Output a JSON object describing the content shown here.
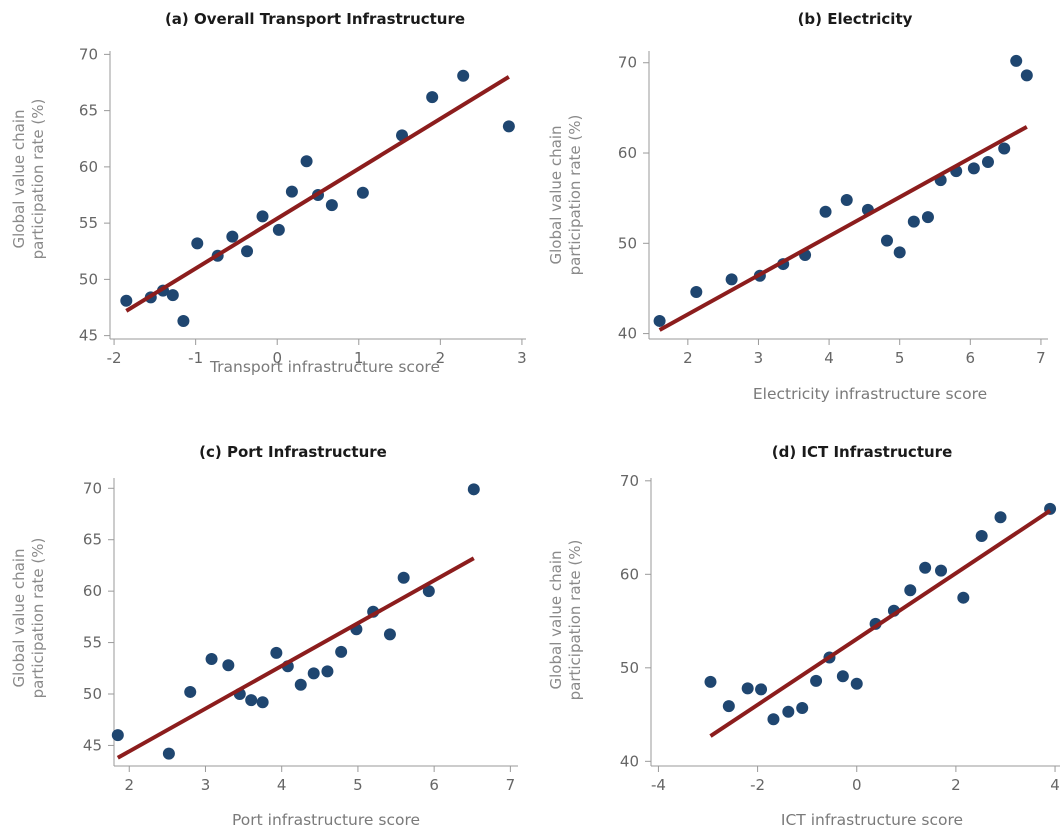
{
  "colors": {
    "point": "#1f4670",
    "fit_line": "#8c1d1d",
    "axis": "#9a9a9a",
    "tick_text": "#666666"
  },
  "chart_data": [
    {
      "type": "scatter",
      "title": "(a) Overall Transport Infrastructure",
      "xlabel": "Transport infrastructure score",
      "ylabel": [
        "Global value chain",
        "participation rate (%)"
      ],
      "xlim": [
        -2.05,
        3.05
      ],
      "ylim": [
        44.7,
        70.3
      ],
      "xticks": [
        -2,
        -1,
        0,
        1,
        2,
        3
      ],
      "yticks": [
        45,
        50,
        55,
        60,
        65,
        70
      ],
      "points": [
        {
          "x": -1.85,
          "y": 48.1
        },
        {
          "x": -1.55,
          "y": 48.4
        },
        {
          "x": -1.4,
          "y": 49.0
        },
        {
          "x": -1.28,
          "y": 48.6
        },
        {
          "x": -1.15,
          "y": 46.3
        },
        {
          "x": -0.98,
          "y": 53.2
        },
        {
          "x": -0.73,
          "y": 52.1
        },
        {
          "x": -0.55,
          "y": 53.8
        },
        {
          "x": -0.37,
          "y": 52.5
        },
        {
          "x": -0.18,
          "y": 55.6
        },
        {
          "x": 0.02,
          "y": 54.4
        },
        {
          "x": 0.18,
          "y": 57.8
        },
        {
          "x": 0.36,
          "y": 60.5
        },
        {
          "x": 0.5,
          "y": 57.5
        },
        {
          "x": 0.67,
          "y": 56.6
        },
        {
          "x": 1.05,
          "y": 57.7
        },
        {
          "x": 1.53,
          "y": 62.8
        },
        {
          "x": 1.9,
          "y": 66.2
        },
        {
          "x": 2.28,
          "y": 68.1
        },
        {
          "x": 2.84,
          "y": 63.6
        }
      ],
      "fit_line": [
        {
          "x": -1.85,
          "y": 47.2
        },
        {
          "x": 2.84,
          "y": 68.0
        }
      ],
      "grid": false
    },
    {
      "type": "scatter",
      "title": "(b) Electricity",
      "xlabel": "Electricity infrastructure score",
      "ylabel": [
        "Global value chain",
        "participation rate (%)"
      ],
      "xlim": [
        1.45,
        7.1
      ],
      "ylim": [
        39.4,
        71.3
      ],
      "xticks": [
        2,
        3,
        4,
        5,
        6,
        7
      ],
      "yticks": [
        40,
        50,
        60,
        70
      ],
      "points": [
        {
          "x": 1.6,
          "y": 41.4
        },
        {
          "x": 2.12,
          "y": 44.6
        },
        {
          "x": 2.62,
          "y": 46.0
        },
        {
          "x": 3.02,
          "y": 46.4
        },
        {
          "x": 3.35,
          "y": 47.7
        },
        {
          "x": 3.66,
          "y": 48.7
        },
        {
          "x": 3.95,
          "y": 53.5
        },
        {
          "x": 4.25,
          "y": 54.8
        },
        {
          "x": 4.55,
          "y": 53.7
        },
        {
          "x": 4.82,
          "y": 50.3
        },
        {
          "x": 5.0,
          "y": 49.0
        },
        {
          "x": 5.2,
          "y": 52.4
        },
        {
          "x": 5.4,
          "y": 52.9
        },
        {
          "x": 5.58,
          "y": 57.0
        },
        {
          "x": 5.8,
          "y": 58.0
        },
        {
          "x": 6.05,
          "y": 58.3
        },
        {
          "x": 6.25,
          "y": 59.0
        },
        {
          "x": 6.48,
          "y": 60.5
        },
        {
          "x": 6.65,
          "y": 70.2
        },
        {
          "x": 6.8,
          "y": 68.6
        }
      ],
      "fit_line": [
        {
          "x": 1.6,
          "y": 40.4
        },
        {
          "x": 6.8,
          "y": 62.9
        }
      ],
      "grid": false
    },
    {
      "type": "scatter",
      "title": "(c) Port Infrastructure",
      "xlabel": "Port infrastructure score",
      "ylabel": [
        "Global value chain",
        "participation rate (%)"
      ],
      "xlim": [
        1.8,
        7.1
      ],
      "ylim": [
        43.0,
        71.0
      ],
      "xticks": [
        2,
        3,
        4,
        5,
        6,
        7
      ],
      "yticks": [
        45,
        50,
        55,
        60,
        65,
        70
      ],
      "points": [
        {
          "x": 1.85,
          "y": 46.0
        },
        {
          "x": 2.52,
          "y": 44.2
        },
        {
          "x": 2.8,
          "y": 50.2
        },
        {
          "x": 3.08,
          "y": 53.4
        },
        {
          "x": 3.3,
          "y": 52.8
        },
        {
          "x": 3.45,
          "y": 50.0
        },
        {
          "x": 3.6,
          "y": 49.4
        },
        {
          "x": 3.75,
          "y": 49.2
        },
        {
          "x": 3.93,
          "y": 54.0
        },
        {
          "x": 4.08,
          "y": 52.7
        },
        {
          "x": 4.25,
          "y": 50.9
        },
        {
          "x": 4.42,
          "y": 52.0
        },
        {
          "x": 4.6,
          "y": 52.2
        },
        {
          "x": 4.78,
          "y": 54.1
        },
        {
          "x": 4.98,
          "y": 56.3
        },
        {
          "x": 5.2,
          "y": 58.0
        },
        {
          "x": 5.42,
          "y": 55.8
        },
        {
          "x": 5.6,
          "y": 61.3
        },
        {
          "x": 5.93,
          "y": 60.0
        },
        {
          "x": 6.52,
          "y": 69.9
        }
      ],
      "fit_line": [
        {
          "x": 1.85,
          "y": 43.8
        },
        {
          "x": 6.52,
          "y": 63.2
        }
      ],
      "grid": false
    },
    {
      "type": "scatter",
      "title": "(d) ICT Infrastructure",
      "xlabel": "ICT infrastructure score",
      "ylabel": [
        "Global value chain",
        "participation rate (%)"
      ],
      "xlim": [
        -4.15,
        4.1
      ],
      "ylim": [
        39.5,
        70.3
      ],
      "xticks": [
        -4,
        -2,
        0,
        2,
        4
      ],
      "yticks": [
        40,
        50,
        60,
        70
      ],
      "points": [
        {
          "x": -2.95,
          "y": 48.5
        },
        {
          "x": -2.58,
          "y": 45.9
        },
        {
          "x": -2.2,
          "y": 47.8
        },
        {
          "x": -1.93,
          "y": 47.7
        },
        {
          "x": -1.68,
          "y": 44.5
        },
        {
          "x": -1.38,
          "y": 45.3
        },
        {
          "x": -1.1,
          "y": 45.7
        },
        {
          "x": -0.82,
          "y": 48.6
        },
        {
          "x": -0.55,
          "y": 51.1
        },
        {
          "x": -0.28,
          "y": 49.1
        },
        {
          "x": 0.0,
          "y": 48.3
        },
        {
          "x": 0.38,
          "y": 54.7
        },
        {
          "x": 0.75,
          "y": 56.1
        },
        {
          "x": 1.08,
          "y": 58.3
        },
        {
          "x": 1.38,
          "y": 60.7
        },
        {
          "x": 1.7,
          "y": 60.4
        },
        {
          "x": 2.15,
          "y": 57.5
        },
        {
          "x": 2.52,
          "y": 64.1
        },
        {
          "x": 2.9,
          "y": 66.1
        },
        {
          "x": 3.9,
          "y": 67.0
        }
      ],
      "fit_line": [
        {
          "x": -2.95,
          "y": 42.7
        },
        {
          "x": 3.9,
          "y": 66.8
        }
      ],
      "grid": false
    }
  ]
}
